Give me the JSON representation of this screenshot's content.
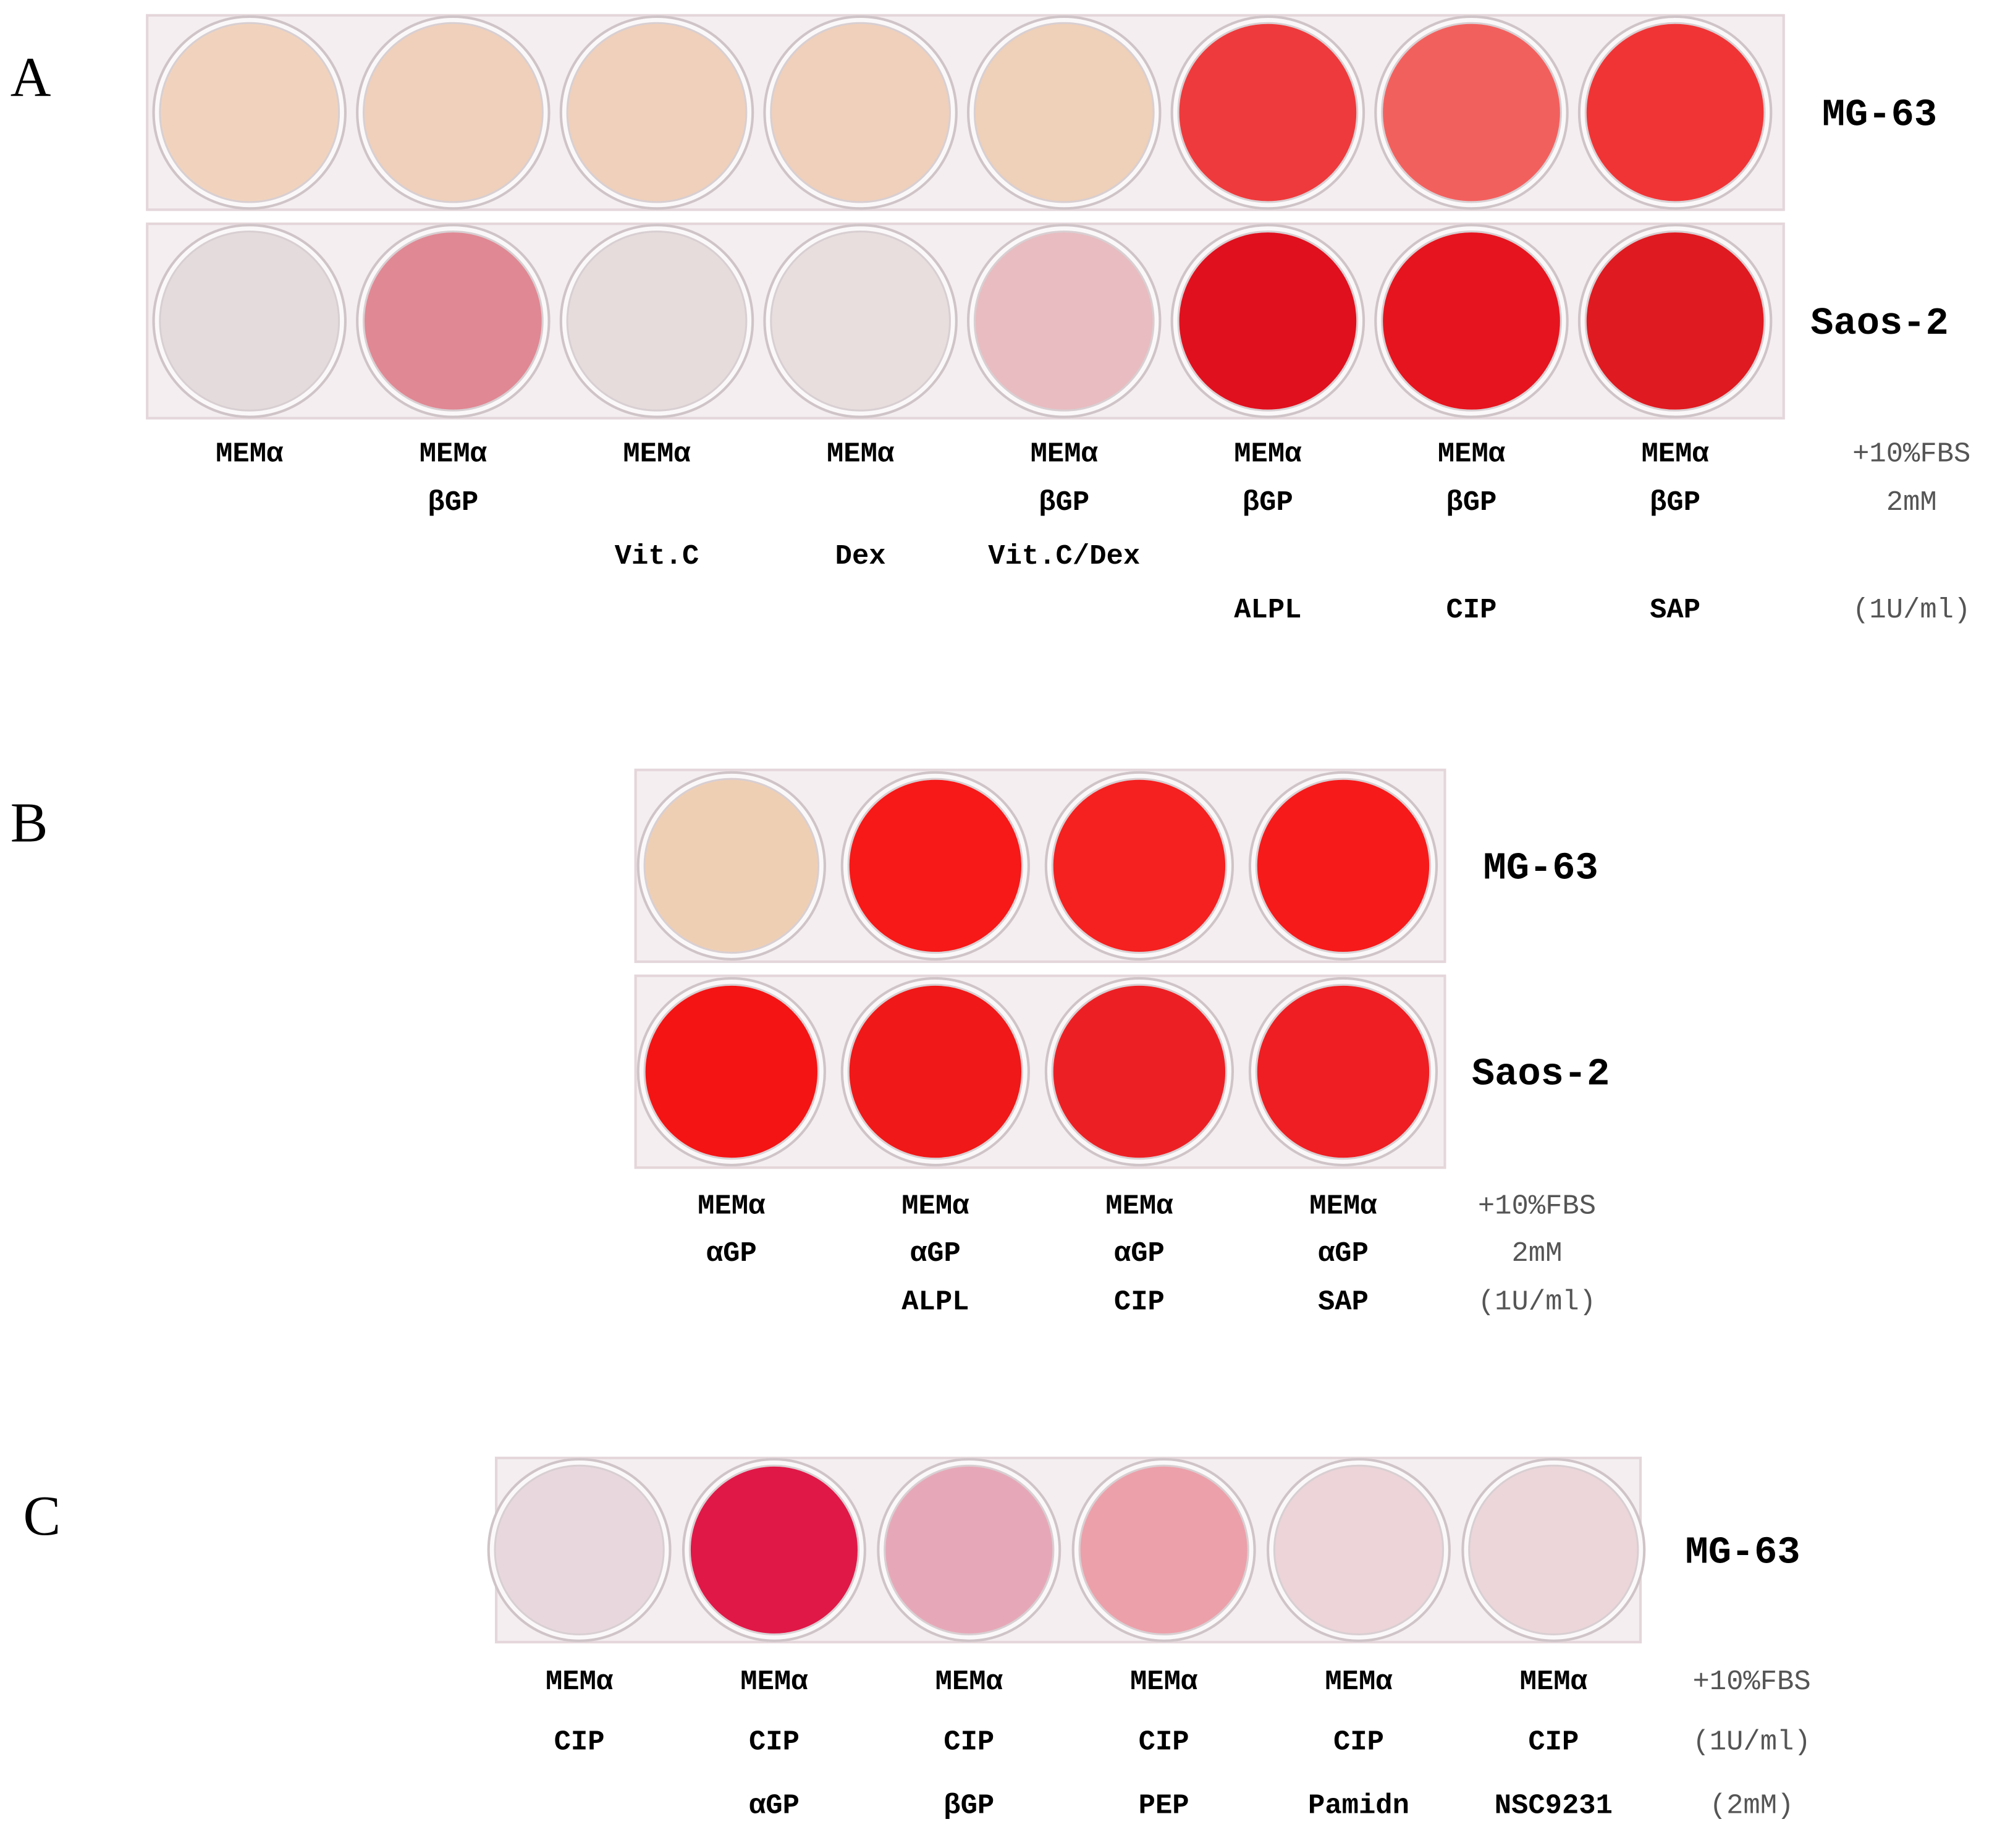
{
  "panels": [
    {
      "label": "A",
      "rows": [
        {
          "name": "MG-63",
          "wells": [
            "#f1d3bd",
            "#f0d0bb",
            "#f0d0ba",
            "#f0d0bb",
            "#efd0b8",
            "#ee3a3c",
            "#f2605e",
            "#f03436"
          ]
        },
        {
          "name": "Saos-2",
          "wells": [
            "#e4dcdc",
            "#e08894",
            "#e6dcdc",
            "#e8dede",
            "#e8bcc0",
            "#e0101e",
            "#e6141e",
            "#df1a20"
          ]
        }
      ],
      "columns": [
        [
          "MEMα"
        ],
        [
          "MEMα",
          "βGP"
        ],
        [
          "MEMα",
          null,
          "Vit.C"
        ],
        [
          "MEMα",
          null,
          "Dex"
        ],
        [
          "MEMα",
          "βGP",
          "Vit.C/Dex"
        ],
        [
          "MEMα",
          "βGP",
          null,
          "ALPL"
        ],
        [
          "MEMα",
          "βGP",
          null,
          "CIP"
        ],
        [
          "MEMα",
          "βGP",
          null,
          "SAP"
        ]
      ],
      "notes": [
        "+10%FBS",
        "2mM",
        null,
        "(1U/ml)"
      ]
    },
    {
      "label": "B",
      "rows": [
        {
          "name": "MG-63",
          "wells": [
            "#efcfb4",
            "#f71818",
            "#f52020",
            "#f61a1a"
          ]
        },
        {
          "name": "Saos-2",
          "wells": [
            "#f41414",
            "#f01818",
            "#ec2024",
            "#ee1e22"
          ]
        }
      ],
      "columns": [
        [
          "MEMα",
          "αGP"
        ],
        [
          "MEMα",
          "αGP",
          "ALPL"
        ],
        [
          "MEMα",
          "αGP",
          "CIP"
        ],
        [
          "MEMα",
          "αGP",
          "SAP"
        ]
      ],
      "notes": [
        "+10%FBS",
        "2mM",
        "(1U/ml)"
      ]
    },
    {
      "label": "C",
      "rows": [
        {
          "name": "MG-63",
          "wells": [
            "#e8d8de",
            "#e01848",
            "#e6a8b8",
            "#eca0aa",
            "#ecd4d8",
            "#ecd6da"
          ]
        }
      ],
      "columns": [
        [
          "MEMα",
          "CIP"
        ],
        [
          "MEMα",
          "CIP",
          "αGP"
        ],
        [
          "MEMα",
          "CIP",
          "βGP"
        ],
        [
          "MEMα",
          "CIP",
          "PEP"
        ],
        [
          "MEMα",
          "CIP",
          "Pamidn"
        ],
        [
          "MEMα",
          "CIP",
          "NSC9231"
        ]
      ],
      "notes": [
        "+10%FBS",
        "(1U/ml)",
        "(2mM)"
      ]
    }
  ]
}
